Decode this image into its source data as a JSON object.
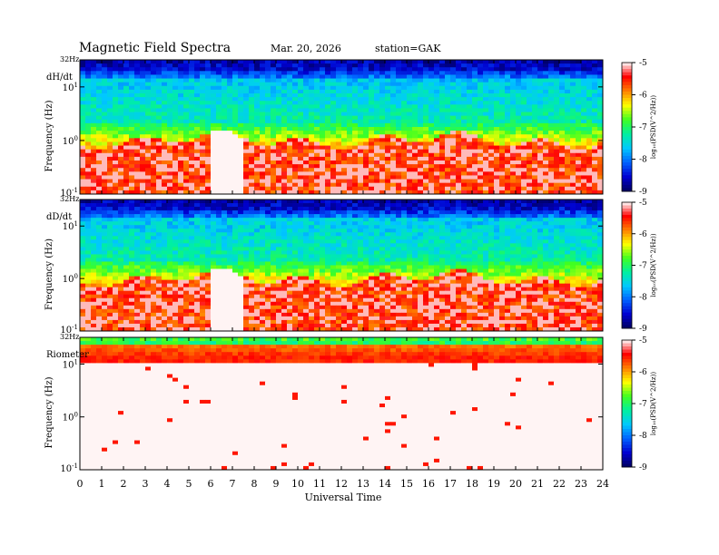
{
  "header": {
    "title": "Magnetic  Field  Spectra",
    "date": "Mar. 20, 2026",
    "station": "station=GAK"
  },
  "colors": {
    "colormap": [
      "#000060",
      "#0000d0",
      "#0060ff",
      "#00c8ff",
      "#00f0a0",
      "#40ff20",
      "#ffff00",
      "#ff8000",
      "#ff0000",
      "#ffffff"
    ]
  },
  "chart_data": {
    "type": "heatmap",
    "xlabel": "Universal Time",
    "xlim": [
      0,
      24
    ],
    "x_ticks": [
      "0",
      "1",
      "2",
      "3",
      "4",
      "5",
      "6",
      "7",
      "8",
      "9",
      "10",
      "11",
      "12",
      "13",
      "14",
      "15",
      "16",
      "17",
      "18",
      "19",
      "20",
      "21",
      "22",
      "23",
      "24"
    ],
    "ylabel": "Frequency  (Hz)",
    "yscale": "log",
    "ylim_hz": [
      0.1,
      32
    ],
    "y_ticks": [
      {
        "base": "10",
        "exp": "1"
      },
      {
        "base": "10",
        "exp": "0"
      },
      {
        "base": "10",
        "exp": "-1"
      }
    ],
    "y_top_label": "32Hz",
    "colorbar": {
      "label": "log₁₀(PSD(V^2/Hz))",
      "range": [
        -9,
        -5
      ],
      "ticks": [
        "-5",
        "-6",
        "-7",
        "-8",
        "-9"
      ]
    },
    "panels": [
      {
        "name": "dH/dt",
        "spectral_profile": "magnetometer",
        "bright_line_hz": 7.5
      },
      {
        "name": "dD/dt",
        "spectral_profile": "magnetometer",
        "bright_line_hz": 7.5
      },
      {
        "name": "Riometer",
        "spectral_profile": "riometer",
        "bright_line_hz": null
      }
    ]
  }
}
